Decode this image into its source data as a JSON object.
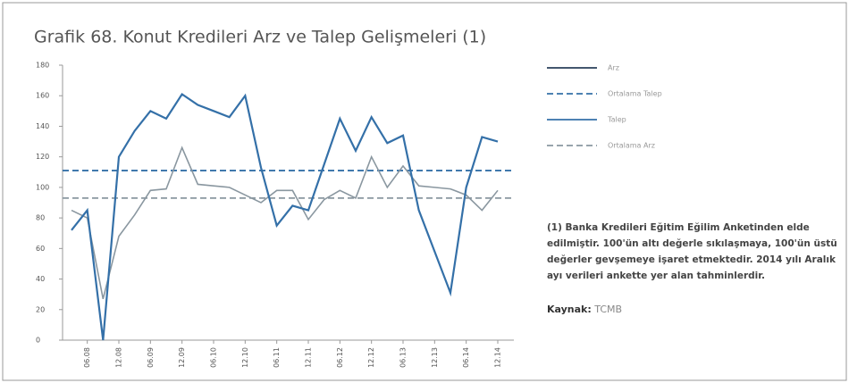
{
  "chart_data": {
    "type": "line",
    "title": "Grafik 68. Konut Kredileri Arz ve Talep Gelişmeleri (1)",
    "categories": [
      null,
      "06.08",
      null,
      "12.08",
      null,
      "06.09",
      null,
      "12.09",
      null,
      "06.10",
      null,
      "12.10",
      null,
      "06.11",
      null,
      "12.11",
      null,
      "06.12",
      null,
      "12.12",
      null,
      "06.13",
      null,
      "12.13",
      null,
      "06.14",
      null,
      "12.14"
    ],
    "series": [
      {
        "name": "Arz",
        "color": "#8a97a0",
        "values": [
          85,
          80,
          27,
          68,
          82,
          98,
          99,
          126,
          102,
          101,
          100,
          95,
          90,
          98,
          98,
          79,
          92,
          98,
          93,
          120,
          100,
          114,
          101,
          100,
          99,
          95,
          85,
          98
        ]
      },
      {
        "name": "Talep",
        "color": "#3470a8",
        "values": [
          72,
          85,
          0,
          120,
          137,
          150,
          145,
          161,
          154,
          150,
          146,
          160,
          113,
          75,
          88,
          85,
          115,
          145,
          124,
          146,
          129,
          134,
          85,
          58,
          31,
          100,
          133,
          130
        ]
      }
    ],
    "reference_lines": [
      {
        "name": "Ortalama Talep",
        "value": 111,
        "color": "#3470a8"
      },
      {
        "name": "Ortalama Arz",
        "value": 93,
        "color": "#8a97a0"
      }
    ],
    "ylim": [
      0,
      180
    ],
    "yticks": [
      0,
      20,
      40,
      60,
      80,
      100,
      120,
      140,
      160,
      180
    ],
    "note": "(1) Banka Kredileri Eğitim Eğilim Anketinden elde edilmiştir. 100'ün altı değerle sıkılaşmaya, 100'ün üstü değerler gevşemeye işaret etmektedir. 2014 yılı Aralık ayı verileri ankette yer alan tahminlerdir.",
    "source_label": "Kaynak:",
    "source": "TCMB"
  }
}
